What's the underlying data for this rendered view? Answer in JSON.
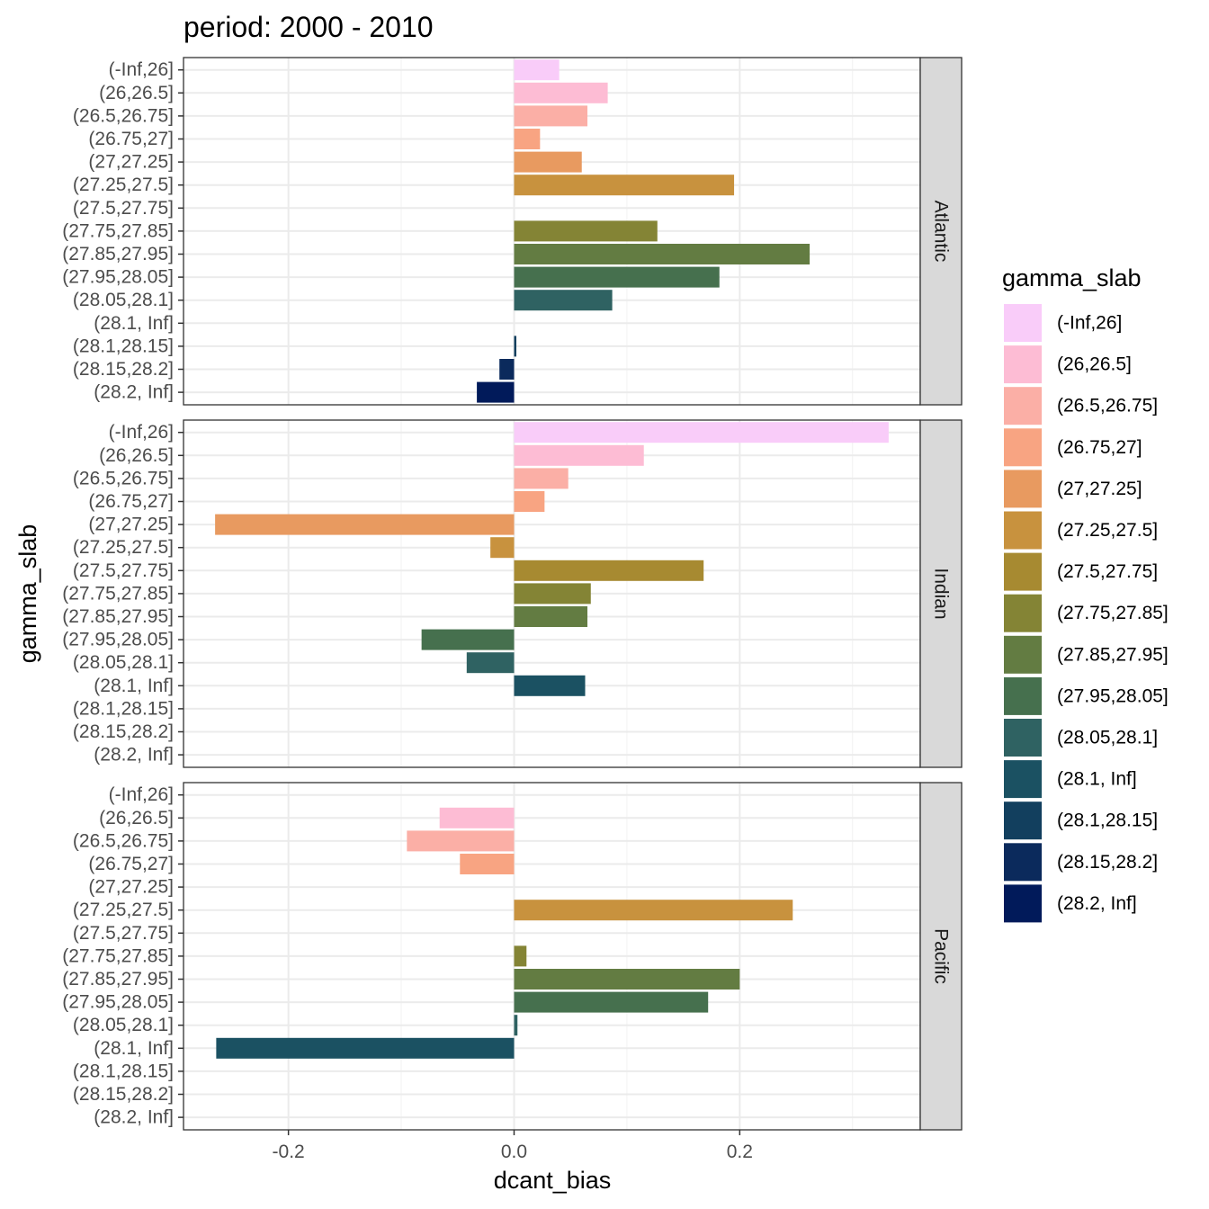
{
  "chart_data": {
    "type": "bar",
    "orientation": "horizontal",
    "title": "period: 2000 - 2010",
    "xlabel": "dcant_bias",
    "ylabel": "gamma_slab",
    "xlim": [
      -0.293,
      0.36
    ],
    "x_ticks": [
      -0.2,
      0.0,
      0.2
    ],
    "x_tick_labels": [
      "-0.2",
      "0.0",
      "0.2"
    ],
    "grid": true,
    "legend": {
      "title": "gamma_slab",
      "position": "right"
    },
    "categories": [
      "(-Inf,26]",
      "(26,26.5]",
      "(26.5,26.75]",
      "(26.75,27]",
      "(27,27.25]",
      "(27.25,27.5]",
      "(27.5,27.75]",
      "(27.75,27.85]",
      "(27.85,27.95]",
      "(27.95,28.05]",
      "(28.05,28.1]",
      "(28.1, Inf]",
      "(28.1,28.15]",
      "(28.15,28.2]",
      "(28.2, Inf]"
    ],
    "colors": [
      "#F9CCF9",
      "#FDBCD4",
      "#FBAFA6",
      "#F8A482",
      "#E89A60",
      "#C8923E",
      "#A78A31",
      "#848435",
      "#637C42",
      "#46704E",
      "#2F6262",
      "#1B5162",
      "#123F5E",
      "#0B2A5C",
      "#011A5A"
    ],
    "panels": [
      {
        "name": "Atlantic",
        "values": [
          0.04,
          0.083,
          0.065,
          0.023,
          0.06,
          0.195,
          null,
          0.127,
          0.262,
          0.182,
          0.087,
          null,
          0.002,
          -0.013,
          -0.033
        ]
      },
      {
        "name": "Indian",
        "values": [
          0.332,
          0.115,
          0.048,
          0.027,
          -0.265,
          -0.021,
          0.168,
          0.068,
          0.065,
          -0.082,
          -0.042,
          0.063,
          null,
          null,
          null
        ]
      },
      {
        "name": "Pacific",
        "values": [
          null,
          -0.066,
          -0.095,
          -0.048,
          null,
          0.247,
          null,
          0.011,
          0.2,
          0.172,
          0.003,
          -0.264,
          null,
          null,
          null
        ]
      }
    ]
  }
}
